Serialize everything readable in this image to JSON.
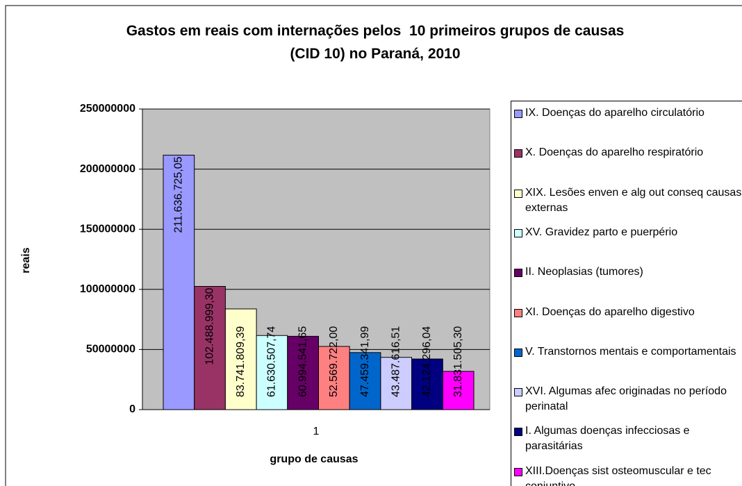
{
  "chart_data": {
    "type": "bar",
    "title": "Gastos em reais com internações pelos  10 primeiros grupos de causas (CID 10) no Paraná, 2010",
    "x_label": "grupo de causas",
    "y_label": "reais",
    "categories": [
      "1"
    ],
    "series": [
      {
        "name": "IX. Doenças do aparelho circulatório",
        "color": "#9999ff",
        "values": [
          211636725.05
        ],
        "value_labels": [
          "211.636.725,05"
        ]
      },
      {
        "name": "X. Doenças do aparelho respiratório",
        "color": "#993366",
        "values": [
          102488999.3
        ],
        "value_labels": [
          "102.488.999,30"
        ]
      },
      {
        "name": "XIX. Lesões enven e alg out conseq causas externas",
        "color": "#ffffcc",
        "values": [
          83741809.39
        ],
        "value_labels": [
          "83.741.809,39"
        ]
      },
      {
        "name": "XV. Gravidez parto e puerpério",
        "color": "#ccffff",
        "values": [
          61630507.74
        ],
        "value_labels": [
          "61.630.507,74"
        ]
      },
      {
        "name": "II. Neoplasias (tumores)",
        "color": "#660066",
        "values": [
          60994541.65
        ],
        "value_labels": [
          "60.994.541,65"
        ]
      },
      {
        "name": "XI. Doenças do aparelho digestivo",
        "color": "#ff8080",
        "values": [
          52569722.0
        ],
        "value_labels": [
          "52.569.722,00"
        ]
      },
      {
        "name": "V. Transtornos mentais e comportamentais",
        "color": "#0066cc",
        "values": [
          47459341.99
        ],
        "value_labels": [
          "47.459.341,99"
        ]
      },
      {
        "name": "XVI. Algumas afec originadas no período perinatal",
        "color": "#ccccff",
        "values": [
          43487616.51
        ],
        "value_labels": [
          "43.487.616,51"
        ]
      },
      {
        "name": "I. Algumas doenças infecciosas e parasitárias",
        "color": "#000080",
        "values": [
          42124296.04
        ],
        "value_labels": [
          "42.124.296,04"
        ]
      },
      {
        "name": "XIII.Doenças sist osteomuscular e tec conjuntivo",
        "color": "#ff00ff",
        "values": [
          31831505.3
        ],
        "value_labels": [
          "31.831.505,30"
        ]
      }
    ],
    "ylim": [
      0,
      250000000
    ],
    "yticks": [
      0,
      50000000,
      100000000,
      150000000,
      200000000,
      250000000
    ],
    "grid": true,
    "plot_background": "#c0c0c0",
    "legend": "right"
  }
}
